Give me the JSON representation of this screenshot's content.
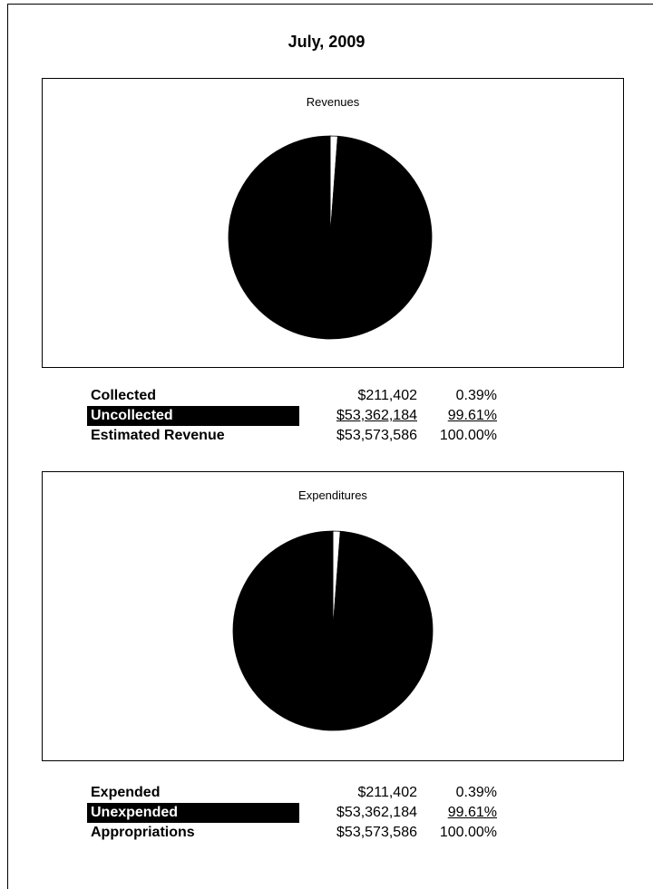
{
  "report_title": "July, 2009",
  "chart_data": [
    {
      "type": "pie",
      "title": "Revenues",
      "categories": [
        "Collected",
        "Uncollected"
      ],
      "values": [
        211402,
        53362184
      ],
      "percent": [
        0.39,
        99.61
      ],
      "colors": [
        "#ffffff",
        "#000000"
      ],
      "legend": [
        {
          "label": "Collected",
          "amount": "$211,402",
          "percent": "0.39%",
          "highlight": false,
          "amount_underlined": false,
          "percent_underlined": false
        },
        {
          "label": "Uncollected",
          "amount": "$53,362,184",
          "percent": "99.61%",
          "highlight": true,
          "amount_underlined": true,
          "percent_underlined": true
        },
        {
          "label": "Estimated Revenue",
          "amount": "$53,573,586",
          "percent": "100.00%",
          "highlight": false,
          "amount_underlined": false,
          "percent_underlined": false
        }
      ]
    },
    {
      "type": "pie",
      "title": "Expenditures",
      "categories": [
        "Expended",
        "Unexpended"
      ],
      "values": [
        211402,
        53362184
      ],
      "percent": [
        0.39,
        99.61
      ],
      "colors": [
        "#ffffff",
        "#000000"
      ],
      "legend": [
        {
          "label": "Expended",
          "amount": "$211,402",
          "percent": "0.39%",
          "highlight": false,
          "amount_underlined": false,
          "percent_underlined": false
        },
        {
          "label": "Unexpended",
          "amount": "$53,362,184",
          "percent": "99.61%",
          "highlight": true,
          "amount_underlined": false,
          "percent_underlined": true
        },
        {
          "label": "Appropriations",
          "amount": "$53,573,586",
          "percent": "100.00%",
          "highlight": false,
          "amount_underlined": false,
          "percent_underlined": false
        }
      ]
    }
  ]
}
